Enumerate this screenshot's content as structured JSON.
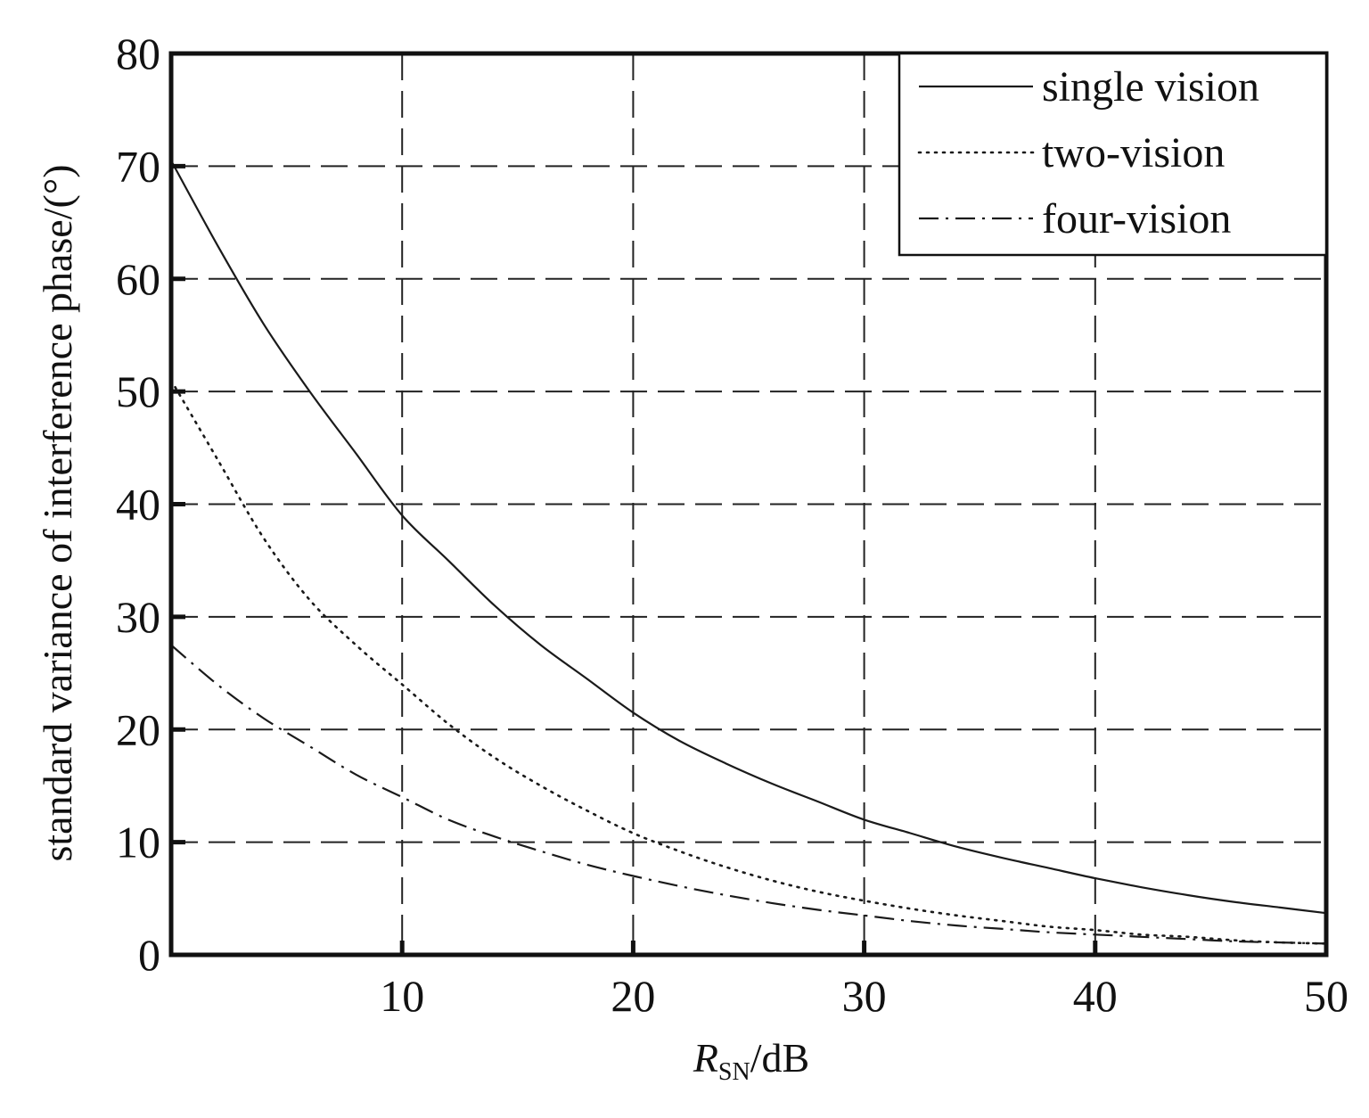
{
  "chart_data": {
    "type": "line",
    "xlabel": {
      "main": "R",
      "sub": "SN",
      "rest": "/dB"
    },
    "ylabel": "standard variance of interference phase/(°)",
    "xlim": [
      0,
      50
    ],
    "ylim": [
      0,
      80
    ],
    "xticks": [
      10,
      20,
      30,
      40,
      50
    ],
    "yticks": [
      0,
      10,
      20,
      30,
      40,
      50,
      60,
      70,
      80
    ],
    "grid": true,
    "legend_position": "top-right",
    "series": [
      {
        "name": "single vision",
        "style": "solid",
        "x": [
          0,
          2,
          4,
          6,
          8,
          10,
          12,
          14,
          16,
          18,
          20,
          22,
          24,
          26,
          28,
          30,
          32,
          34,
          36,
          38,
          40,
          42,
          44,
          46,
          48,
          50
        ],
        "y": [
          70.5,
          63.0,
          56.0,
          50.0,
          44.5,
          39.0,
          35.0,
          31.0,
          27.5,
          24.5,
          21.5,
          19.0,
          17.0,
          15.2,
          13.6,
          12.0,
          10.8,
          9.6,
          8.6,
          7.7,
          6.8,
          6.0,
          5.3,
          4.7,
          4.2,
          3.7
        ]
      },
      {
        "name": "two-vision",
        "style": "dotted",
        "x": [
          0,
          2,
          4,
          6,
          8,
          10,
          12,
          14,
          16,
          18,
          20,
          22,
          24,
          26,
          28,
          30,
          32,
          34,
          36,
          38,
          40,
          42,
          44,
          46,
          48,
          50
        ],
        "y": [
          51.0,
          44.0,
          37.0,
          31.5,
          27.5,
          24.0,
          20.5,
          17.5,
          15.0,
          12.8,
          10.8,
          9.2,
          7.8,
          6.6,
          5.6,
          4.8,
          4.1,
          3.5,
          3.0,
          2.5,
          2.2,
          1.8,
          1.6,
          1.3,
          1.1,
          1.0
        ]
      },
      {
        "name": "four-vision",
        "style": "dashdot",
        "x": [
          0,
          2,
          4,
          6,
          8,
          10,
          12,
          14,
          16,
          18,
          20,
          22,
          24,
          26,
          28,
          30,
          32,
          34,
          36,
          38,
          40,
          42,
          44,
          46,
          48,
          50
        ],
        "y": [
          27.5,
          24.0,
          21.0,
          18.5,
          16.0,
          14.0,
          12.0,
          10.5,
          9.2,
          8.0,
          7.0,
          6.1,
          5.3,
          4.6,
          4.0,
          3.5,
          3.0,
          2.6,
          2.3,
          2.0,
          1.8,
          1.6,
          1.4,
          1.2,
          1.1,
          1.0
        ]
      }
    ]
  }
}
